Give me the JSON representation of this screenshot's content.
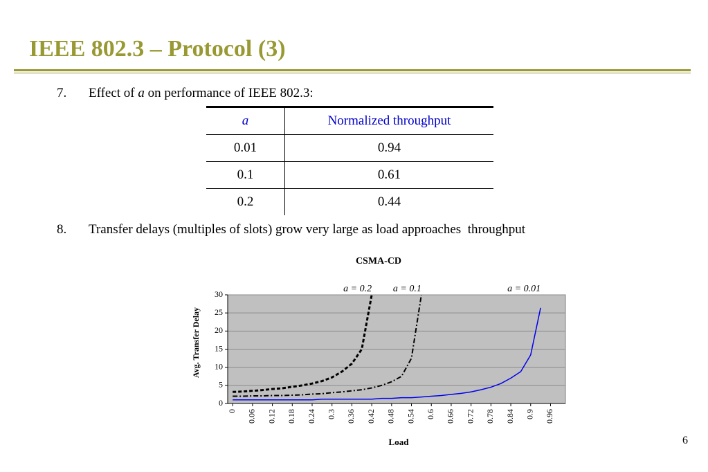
{
  "header": {
    "title": "IEEE 802.3 – Protocol (3)"
  },
  "items": [
    {
      "number": "7.",
      "text_before": "Effect of ",
      "emphasis": "a",
      "text_after": " on performance of IEEE 802.3:"
    },
    {
      "number": "8.",
      "text": "Transfer delays (multiples of slots) grow very large as load approaches  throughput"
    }
  ],
  "table": {
    "header": [
      "a",
      "Normalized throughput"
    ],
    "rows": [
      [
        "0.01",
        "0.94"
      ],
      [
        "0.1",
        "0.61"
      ],
      [
        "0.2",
        "0.44"
      ]
    ]
  },
  "chart_data": {
    "type": "line",
    "title": "CSMA-CD",
    "x_label": "Load",
    "y_label": "Avg. Transfer Delay",
    "x": [
      0,
      0.03,
      0.06,
      0.09,
      0.12,
      0.15,
      0.18,
      0.21,
      0.24,
      0.27,
      0.3,
      0.33,
      0.36,
      0.39,
      0.42,
      0.45,
      0.48,
      0.51,
      0.54,
      0.57,
      0.6,
      0.63,
      0.66,
      0.69,
      0.72,
      0.75,
      0.78,
      0.81,
      0.84,
      0.87,
      0.9,
      0.93,
      0.96,
      0.99
    ],
    "series": [
      {
        "name": "a = 0.2",
        "color": "#000000",
        "line_style": "dashed",
        "values": [
          3.2,
          3.3,
          3.5,
          3.7,
          4.0,
          4.2,
          4.6,
          5.0,
          5.5,
          6.2,
          7.2,
          8.8,
          11,
          15,
          30,
          null,
          null,
          null,
          null,
          null,
          null,
          null,
          null,
          null,
          null,
          null,
          null,
          null,
          null,
          null,
          null,
          null,
          null,
          null
        ]
      },
      {
        "name": "a = 0.1",
        "color": "#000000",
        "line_style": "dashdot",
        "values": [
          2.0,
          2.0,
          2.1,
          2.1,
          2.2,
          2.2,
          2.3,
          2.4,
          2.6,
          2.7,
          3.0,
          3.2,
          3.5,
          3.8,
          4.3,
          5.0,
          6.0,
          7.5,
          12.5,
          30,
          null,
          null,
          null,
          null,
          null,
          null,
          null,
          null,
          null,
          null,
          null,
          null,
          null,
          null
        ]
      },
      {
        "name": "a = 0.01",
        "color": "#0000ee",
        "line_style": "solid",
        "values": [
          1.0,
          1.0,
          1.0,
          1.0,
          1.0,
          1.0,
          1.0,
          1.0,
          1.0,
          1.2,
          1.2,
          1.2,
          1.2,
          1.2,
          1.2,
          1.4,
          1.4,
          1.6,
          1.6,
          1.8,
          2.0,
          2.2,
          2.5,
          2.8,
          3.2,
          3.8,
          4.5,
          5.5,
          7.0,
          8.8,
          13.4,
          26.4,
          null,
          null
        ]
      }
    ],
    "xlim": [
      -0.015,
      1.005
    ],
    "xticks": [
      0,
      0.06,
      0.12,
      0.18,
      0.24,
      0.3,
      0.36,
      0.42,
      0.48,
      0.54,
      0.6,
      0.66,
      0.72,
      0.78,
      0.84,
      0.9,
      0.96
    ],
    "ylim": [
      0,
      30
    ],
    "yticks": [
      0,
      5,
      10,
      15,
      20,
      25,
      30
    ],
    "grid": true
  },
  "page_number": "6"
}
